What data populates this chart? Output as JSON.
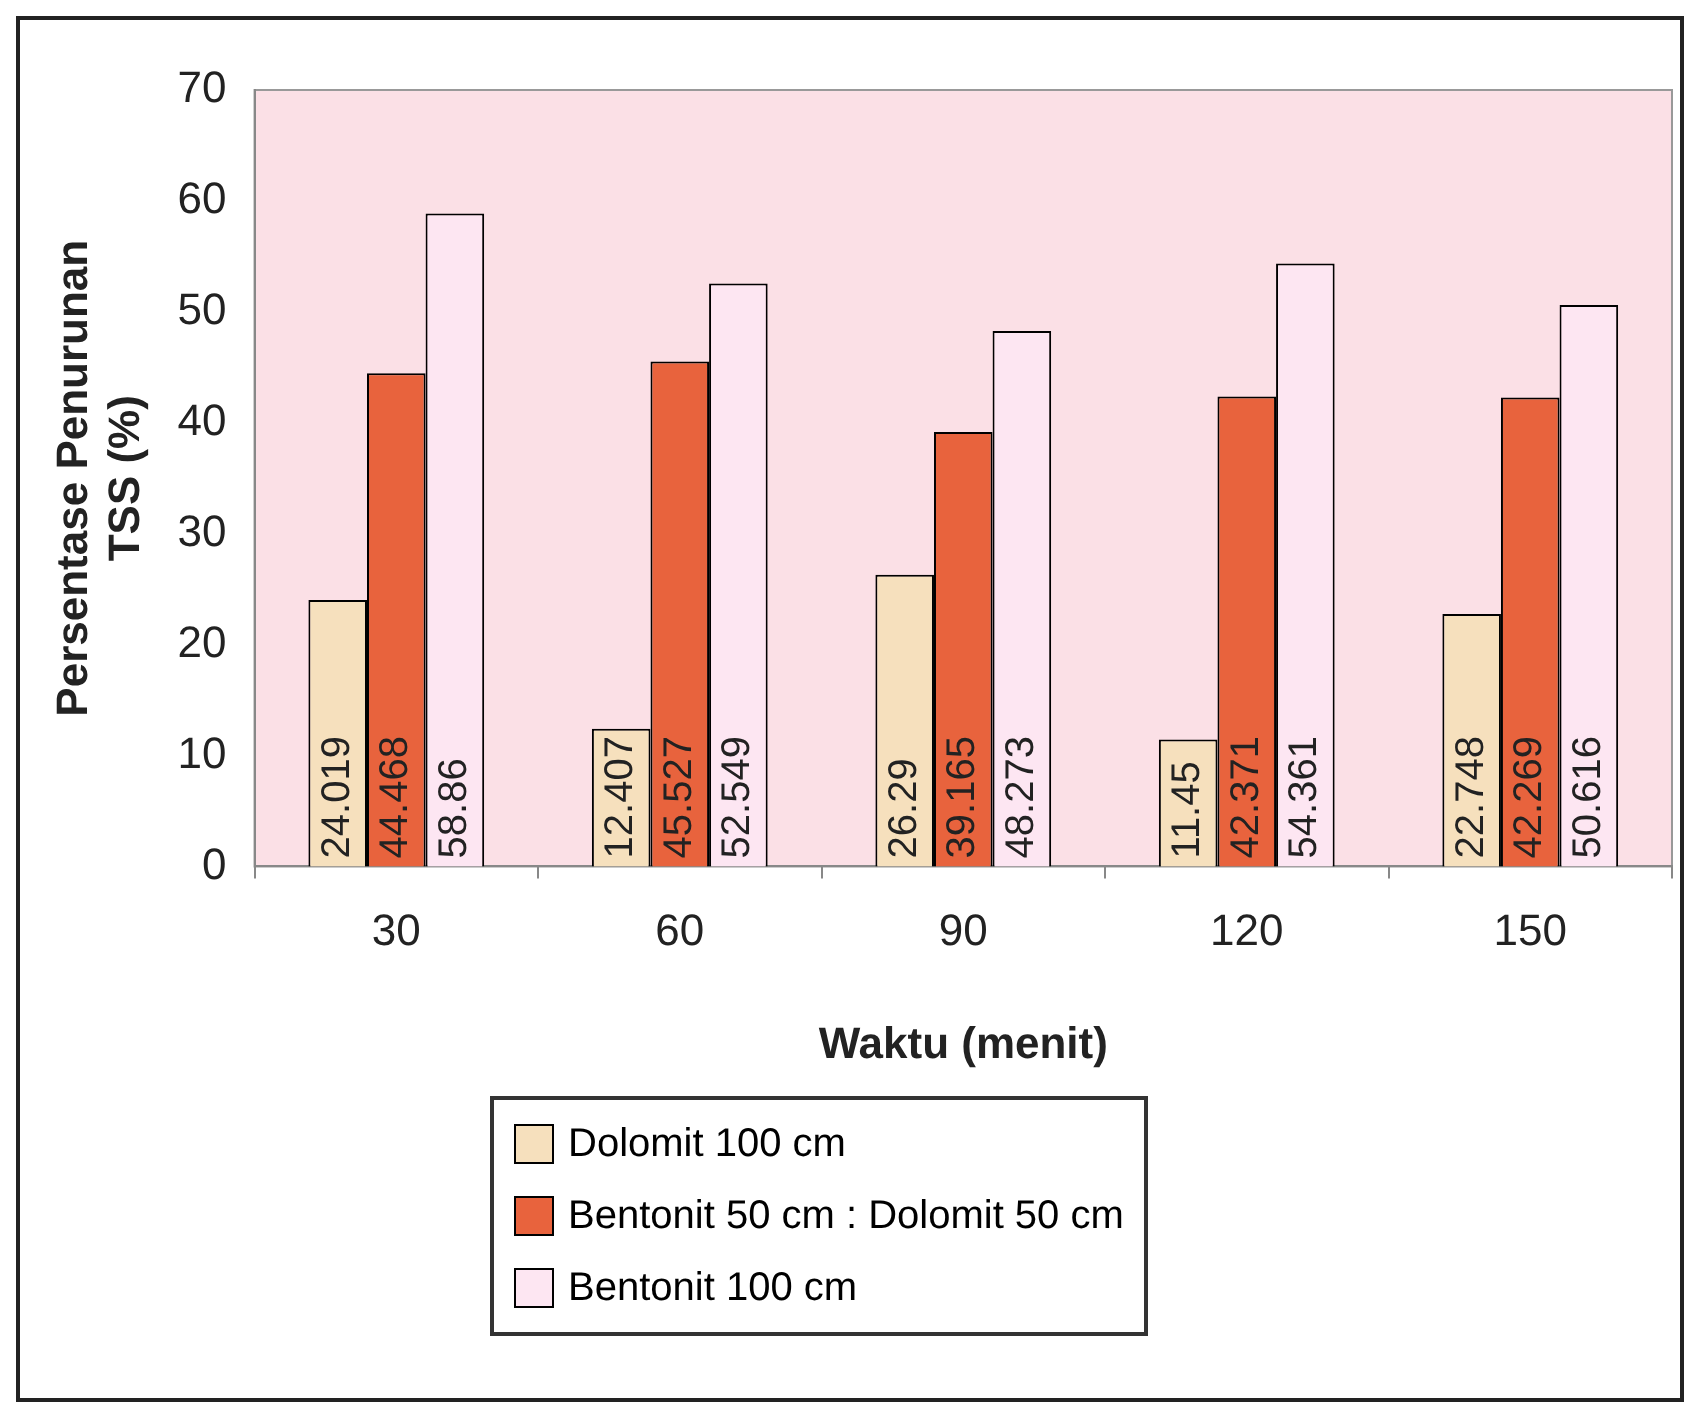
{
  "chart_data": {
    "type": "bar",
    "xlabel": "Waktu (menit)",
    "ylabel": "Persentase Penurunan TSS (%)",
    "categories": [
      "30",
      "60",
      "90",
      "120",
      "150"
    ],
    "series": [
      {
        "name": "Dolomit 100 cm",
        "color": "#f6e0bd",
        "values": [
          24.019,
          12.407,
          26.29,
          11.45,
          22.748
        ]
      },
      {
        "name": "Bentonit 50 cm : Dolomit 50 cm",
        "color": "#e8633d",
        "values": [
          44.468,
          45.527,
          39.165,
          42.371,
          42.269
        ]
      },
      {
        "name": "Bentonit 100 cm",
        "color": "#fde6f2",
        "values": [
          58.86,
          52.549,
          48.273,
          54.361,
          50.616
        ]
      }
    ],
    "ylim": [
      0,
      70
    ],
    "yticks": [
      0,
      10,
      20,
      30,
      40,
      50,
      60,
      70
    ],
    "grid": false,
    "legend": "bottom",
    "data_labels": true
  }
}
